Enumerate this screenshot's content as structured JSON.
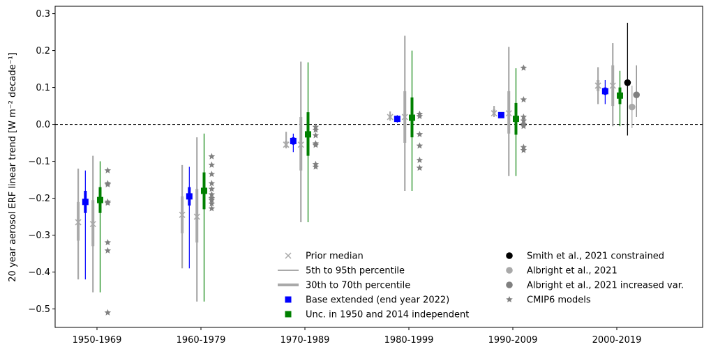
{
  "chart_data": {
    "type": "errorbar-scatter",
    "xlabel": "",
    "ylabel": "20 year aerosol ERF linear trend [W m⁻² decade⁻¹]",
    "ylim": [
      -0.55,
      0.32
    ],
    "yticks": [
      -0.5,
      -0.4,
      -0.3,
      -0.2,
      -0.1,
      0.0,
      0.1,
      0.2,
      0.3
    ],
    "ytick_labels": [
      "−0.5",
      "−0.4",
      "−0.3",
      "−0.2",
      "−0.1",
      "0.0",
      "0.1",
      "0.2",
      "0.3"
    ],
    "reference_line": 0.0,
    "categories": [
      "1950-1969",
      "1960-1979",
      "1970-1989",
      "1980-1999",
      "1990-2009",
      "2000-2019"
    ],
    "legend": {
      "placement": "lower-center",
      "left_column": [
        {
          "label": "Prior median",
          "marker": "x",
          "color": "#a9a9a9"
        },
        {
          "label": "5th to 95th percentile",
          "marker": "thin-line",
          "color": "#a9a9a9"
        },
        {
          "label": "30th to 70th percentile",
          "marker": "thick-line",
          "color": "#a9a9a9"
        },
        {
          "label": "Base extended (end year 2022)",
          "marker": "square",
          "color": "#0000ff"
        },
        {
          "label": "Unc. in 1950 and 2014 independent",
          "marker": "square",
          "color": "#008000"
        }
      ],
      "right_column": [
        {
          "label": "Smith et al., 2021 constrained",
          "marker": "circle",
          "color": "#000000"
        },
        {
          "label": "Albright et al., 2021",
          "marker": "circle",
          "color": "#a9a9a9"
        },
        {
          "label": "Albright et al., 2021 increased var.",
          "marker": "circle",
          "color": "#808080"
        },
        {
          "label": "CMIP6 models",
          "marker": "star",
          "color": "#808080"
        }
      ]
    },
    "series": [
      {
        "name": "Prior median",
        "marker": "x",
        "color": "#a9a9a9",
        "points": [
          {
            "category": "1950-1969",
            "offset": -0.42,
            "median": -0.265,
            "p5": -0.42,
            "p95": -0.12,
            "p30": -0.315,
            "p70": -0.21
          },
          {
            "category": "1950-1969",
            "offset": -0.09,
            "median": -0.27,
            "p5": -0.455,
            "p95": -0.085,
            "p30": -0.33,
            "p70": -0.205
          },
          {
            "category": "1960-1979",
            "offset": -0.42,
            "median": -0.245,
            "p5": -0.39,
            "p95": -0.11,
            "p30": -0.295,
            "p70": -0.195
          },
          {
            "category": "1960-1979",
            "offset": -0.09,
            "median": -0.25,
            "p5": -0.48,
            "p95": -0.035,
            "p30": -0.32,
            "p70": -0.175
          },
          {
            "category": "1970-1989",
            "offset": -0.42,
            "median": -0.055,
            "p5": -0.065,
            "p95": -0.02,
            "p30": -0.062,
            "p70": -0.045
          },
          {
            "category": "1970-1989",
            "offset": -0.09,
            "median": -0.055,
            "p5": -0.265,
            "p95": 0.17,
            "p30": -0.125,
            "p70": 0.02
          },
          {
            "category": "1980-1999",
            "offset": -0.42,
            "median": 0.02,
            "p5": 0.01,
            "p95": 0.035,
            "p30": 0.015,
            "p70": 0.025
          },
          {
            "category": "1980-1999",
            "offset": -0.09,
            "median": 0.02,
            "p5": -0.18,
            "p95": 0.24,
            "p30": -0.05,
            "p70": 0.09
          },
          {
            "category": "1990-2009",
            "offset": -0.42,
            "median": 0.03,
            "p5": 0.02,
            "p95": 0.05,
            "p30": 0.025,
            "p70": 0.04
          },
          {
            "category": "1990-2009",
            "offset": -0.09,
            "median": 0.03,
            "p5": -0.14,
            "p95": 0.21,
            "p30": -0.025,
            "p70": 0.09
          },
          {
            "category": "2000-2019",
            "offset": -0.42,
            "median": 0.105,
            "p5": 0.055,
            "p95": 0.155,
            "p30": 0.09,
            "p70": 0.12
          },
          {
            "category": "2000-2019",
            "offset": -0.09,
            "median": 0.105,
            "p5": -0.005,
            "p95": 0.22,
            "p30": 0.05,
            "p70": 0.16
          }
        ]
      },
      {
        "name": "Base extended (end year 2022)",
        "marker": "square",
        "color": "#0000ff",
        "points": [
          {
            "category": "1950-1969",
            "offset": -0.26,
            "median": -0.21,
            "p5": -0.42,
            "p95": -0.125,
            "p30": -0.24,
            "p70": -0.18
          },
          {
            "category": "1960-1979",
            "offset": -0.26,
            "median": -0.195,
            "p5": -0.39,
            "p95": -0.115,
            "p30": -0.22,
            "p70": -0.17
          },
          {
            "category": "1970-1989",
            "offset": -0.26,
            "median": -0.045,
            "p5": -0.075,
            "p95": -0.025,
            "p30": -0.055,
            "p70": -0.035
          },
          {
            "category": "1980-1999",
            "offset": -0.26,
            "median": 0.015,
            "p5": 0.005,
            "p95": 0.025,
            "p30": 0.01,
            "p70": 0.02
          },
          {
            "category": "1990-2009",
            "offset": -0.26,
            "median": 0.025,
            "p5": 0.02,
            "p95": 0.03,
            "p30": 0.022,
            "p70": 0.028
          },
          {
            "category": "2000-2019",
            "offset": -0.26,
            "median": 0.09,
            "p5": 0.055,
            "p95": 0.12,
            "p30": 0.08,
            "p70": 0.1
          }
        ]
      },
      {
        "name": "Unc. in 1950 and 2014 independent",
        "marker": "square",
        "color": "#008000",
        "points": [
          {
            "category": "1950-1969",
            "offset": 0.07,
            "median": -0.205,
            "p5": -0.455,
            "p95": -0.1,
            "p30": -0.24,
            "p70": -0.17
          },
          {
            "category": "1960-1979",
            "offset": 0.07,
            "median": -0.18,
            "p5": -0.48,
            "p95": -0.025,
            "p30": -0.23,
            "p70": -0.13
          },
          {
            "category": "1970-1989",
            "offset": 0.07,
            "median": -0.027,
            "p5": -0.265,
            "p95": 0.168,
            "p30": -0.085,
            "p70": 0.033
          },
          {
            "category": "1980-1999",
            "offset": 0.07,
            "median": 0.018,
            "p5": -0.18,
            "p95": 0.2,
            "p30": -0.035,
            "p70": 0.073
          },
          {
            "category": "1990-2009",
            "offset": 0.07,
            "median": 0.015,
            "p5": -0.14,
            "p95": 0.152,
            "p30": -0.028,
            "p70": 0.058
          },
          {
            "category": "2000-2019",
            "offset": 0.07,
            "median": 0.078,
            "p5": -0.005,
            "p95": 0.145,
            "p30": 0.055,
            "p70": 0.1
          }
        ]
      },
      {
        "name": "CMIP6 models",
        "marker": "star",
        "color": "#808080",
        "points": [
          {
            "category": "1950-1969",
            "offset": 0.24,
            "values": [
              -0.125,
              -0.16,
              -0.163,
              -0.21,
              -0.213,
              -0.32,
              -0.342,
              -0.51
            ]
          },
          {
            "category": "1960-1979",
            "offset": 0.24,
            "values": [
              -0.087,
              -0.11,
              -0.135,
              -0.16,
              -0.175,
              -0.19,
              -0.2,
              -0.205,
              -0.215,
              -0.228
            ]
          },
          {
            "category": "1970-1989",
            "offset": 0.24,
            "values": [
              -0.007,
              -0.015,
              -0.03,
              -0.052,
              -0.056,
              -0.108,
              -0.115
            ]
          },
          {
            "category": "1980-1999",
            "offset": 0.24,
            "values": [
              0.028,
              0.022,
              -0.027,
              -0.058,
              -0.097,
              -0.118
            ]
          },
          {
            "category": "1990-2009",
            "offset": 0.24,
            "values": [
              0.153,
              0.067,
              0.02,
              0.01,
              0.0,
              -0.005,
              -0.062,
              -0.07
            ]
          }
        ]
      },
      {
        "name": "Smith et al., 2021 constrained",
        "marker": "circle",
        "color": "#000000",
        "points": [
          {
            "category": "2000-2019",
            "offset": 0.24,
            "median": 0.113,
            "p5": -0.03,
            "p95": 0.275
          }
        ]
      },
      {
        "name": "Albright et al., 2021",
        "marker": "circle",
        "color": "#a9a9a9",
        "points": [
          {
            "category": "2000-2019",
            "offset": 0.34,
            "median": 0.047,
            "p5": -0.01,
            "p95": 0.105
          }
        ]
      },
      {
        "name": "Albright et al., 2021 increased var.",
        "marker": "circle",
        "color": "#808080",
        "points": [
          {
            "category": "2000-2019",
            "offset": 0.44,
            "median": 0.08,
            "p5": 0.02,
            "p95": 0.16
          }
        ]
      }
    ]
  }
}
